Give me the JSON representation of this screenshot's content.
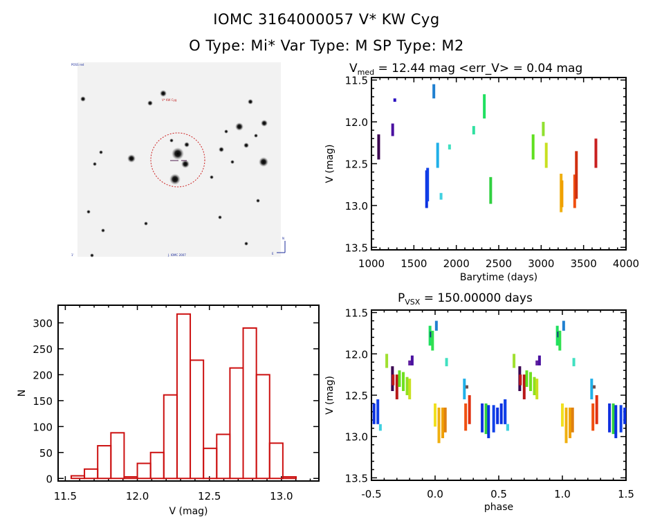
{
  "header": {
    "line1": "IOMC 3164000057    V* KW Cyg",
    "line2": "O Type: Mi*  Var Type: M  SP Type: M2"
  },
  "sky_image": {
    "survey_label": "POSS red",
    "target_label": "V* KW Cyg",
    "bottom_left_label": "1'",
    "bottom_center_label": "J. IOMC 2007",
    "compass_label": "N E",
    "circle_color": "#cc2020"
  },
  "chart_data": [
    {
      "type": "scatter",
      "name": "light_curve",
      "title_main": "V",
      "title_sub": "med",
      "title_rest": " = 12.44 mag <err_V> = 0.04 mag",
      "xlabel": "Barytime (days)",
      "ylabel": "V (mag)",
      "xlim": [
        1000,
        4000
      ],
      "ylim": [
        13.53,
        11.47
      ],
      "y_inverted": true,
      "xticks": [
        1000,
        1500,
        2000,
        2500,
        3000,
        3500,
        4000
      ],
      "yticks": [
        "11.5",
        "12.0",
        "12.5",
        "13.0",
        "13.5"
      ],
      "clusters": [
        {
          "t": 1085,
          "y": [
            12.15,
            12.45
          ],
          "color": "#3a0050"
        },
        {
          "t": 1250,
          "y": [
            12.02,
            12.17
          ],
          "color": "#4a10a0"
        },
        {
          "t": 1275,
          "y": [
            11.72,
            11.76
          ],
          "color": "#2a10c0"
        },
        {
          "t": 1650,
          "y": [
            12.58,
            13.03
          ],
          "color": "#0a30e0"
        },
        {
          "t": 1662,
          "y": [
            12.55,
            12.95
          ],
          "color": "#1040e8"
        },
        {
          "t": 1735,
          "y": [
            11.55,
            11.72
          ],
          "color": "#2080d0"
        },
        {
          "t": 1780,
          "y": [
            12.25,
            12.55
          ],
          "color": "#20b0e8"
        },
        {
          "t": 1820,
          "y": [
            12.85,
            12.93
          ],
          "color": "#40d0e0"
        },
        {
          "t": 1920,
          "y": [
            12.27,
            12.33
          ],
          "color": "#40e0c0"
        },
        {
          "t": 2205,
          "y": [
            12.05,
            12.15
          ],
          "color": "#30e0a0"
        },
        {
          "t": 2330,
          "y": [
            11.67,
            11.96
          ],
          "color": "#20e060"
        },
        {
          "t": 2405,
          "y": [
            12.66,
            12.98
          ],
          "color": "#30d040"
        },
        {
          "t": 2905,
          "y": [
            12.15,
            12.45
          ],
          "color": "#60e020"
        },
        {
          "t": 3025,
          "y": [
            12.0,
            12.17
          ],
          "color": "#90e030"
        },
        {
          "t": 3060,
          "y": [
            12.25,
            12.55
          ],
          "color": "#c8e020"
        },
        {
          "t": 3235,
          "y": [
            12.62,
            13.08
          ],
          "color": "#f0b010"
        },
        {
          "t": 3245,
          "y": [
            12.7,
            13.02
          ],
          "color": "#f0a000"
        },
        {
          "t": 3395,
          "y": [
            12.63,
            13.03
          ],
          "color": "#f05010"
        },
        {
          "t": 3415,
          "y": [
            12.35,
            12.92
          ],
          "color": "#d03010"
        },
        {
          "t": 3645,
          "y": [
            12.2,
            12.55
          ],
          "color": "#c82020"
        }
      ]
    },
    {
      "type": "bar",
      "name": "histogram",
      "xlabel": "V (mag)",
      "ylabel": "N",
      "xlim": [
        11.45,
        13.26
      ],
      "ylim": [
        -5,
        334
      ],
      "xticks": [
        "11.5",
        "12.0",
        "12.5",
        "13.0"
      ],
      "yticks": [
        0,
        50,
        100,
        150,
        200,
        250,
        300
      ],
      "bin_start": 11.541,
      "bin_width": 0.0918,
      "values": [
        5,
        18,
        63,
        88,
        3,
        29,
        50,
        161,
        317,
        228,
        58,
        85,
        213,
        290,
        200,
        68,
        3
      ],
      "bar_color": "#cc1010"
    },
    {
      "type": "scatter",
      "name": "phased_light_curve",
      "title_main": "P",
      "title_sub": "VSX",
      "title_rest": " = 150.00000 days",
      "xlabel": "phase",
      "ylabel": "V (mag)",
      "xlim": [
        -0.5,
        1.5
      ],
      "ylim": [
        13.53,
        11.47
      ],
      "y_inverted": true,
      "xticks": [
        "-0.5",
        "0.0",
        "0.5",
        "1.0",
        "1.5"
      ],
      "yticks": [
        "11.5",
        "12.0",
        "12.5",
        "13.0",
        "13.5"
      ],
      "period_days": 150.0,
      "clusters": [
        {
          "phase": -0.38,
          "y": [
            12.0,
            12.17
          ],
          "color": "#a0e030"
        },
        {
          "phase": -0.335,
          "y": [
            12.15,
            12.45
          ],
          "color": "#3a0050"
        },
        {
          "phase": -0.33,
          "y": [
            12.25,
            12.38
          ],
          "color": "#c01818"
        },
        {
          "phase": -0.3,
          "y": [
            12.25,
            12.55
          ],
          "color": "#b81818"
        },
        {
          "phase": -0.28,
          "y": [
            12.2,
            12.4
          ],
          "color": "#60e020"
        },
        {
          "phase": -0.25,
          "y": [
            12.22,
            12.45
          ],
          "color": "#70e020"
        },
        {
          "phase": -0.22,
          "y": [
            12.28,
            12.5
          ],
          "color": "#90e020"
        },
        {
          "phase": -0.2,
          "y": [
            12.3,
            12.55
          ],
          "color": "#c8e020"
        },
        {
          "phase": -0.2,
          "y": [
            12.08,
            12.14
          ],
          "color": "#6020a0"
        },
        {
          "phase": -0.18,
          "y": [
            12.02,
            12.14
          ],
          "color": "#4a10a0"
        },
        {
          "phase": -0.04,
          "y": [
            11.66,
            11.9
          ],
          "color": "#20e060"
        },
        {
          "phase": -0.03,
          "y": [
            11.73,
            11.8
          ],
          "color": "#103080"
        },
        {
          "phase": -0.02,
          "y": [
            11.72,
            11.96
          ],
          "color": "#30e050"
        },
        {
          "phase": 0.01,
          "y": [
            11.6,
            11.72
          ],
          "color": "#2080d0"
        },
        {
          "phase": 0.09,
          "y": [
            12.05,
            12.15
          ],
          "color": "#40e0c0"
        },
        {
          "phase": -0.48,
          "y": [
            12.6,
            12.85
          ],
          "color": "#0a30e0"
        },
        {
          "phase": -0.45,
          "y": [
            12.55,
            12.85
          ],
          "color": "#1040e8"
        },
        {
          "phase": -0.43,
          "y": [
            12.85,
            12.93
          ],
          "color": "#40d0e0"
        },
        {
          "phase": 0.0,
          "y": [
            12.6,
            12.88
          ],
          "color": "#f0e020"
        },
        {
          "phase": 0.03,
          "y": [
            12.65,
            13.08
          ],
          "color": "#f0b010"
        },
        {
          "phase": 0.06,
          "y": [
            12.65,
            13.02
          ],
          "color": "#f0a000"
        },
        {
          "phase": 0.08,
          "y": [
            12.65,
            12.95
          ],
          "color": "#e08010"
        },
        {
          "phase": 0.23,
          "y": [
            12.3,
            12.55
          ],
          "color": "#20b0e8"
        },
        {
          "phase": 0.25,
          "y": [
            12.38,
            12.42
          ],
          "color": "#705050"
        },
        {
          "phase": 0.24,
          "y": [
            12.6,
            12.93
          ],
          "color": "#f05010"
        },
        {
          "phase": 0.27,
          "y": [
            12.5,
            12.85
          ],
          "color": "#e03010"
        },
        {
          "phase": 0.37,
          "y": [
            12.6,
            12.95
          ],
          "color": "#1030e0"
        },
        {
          "phase": 0.4,
          "y": [
            12.6,
            12.97
          ],
          "color": "#30d040"
        },
        {
          "phase": 0.42,
          "y": [
            12.62,
            13.02
          ],
          "color": "#0a30e0"
        },
        {
          "phase": 0.46,
          "y": [
            12.62,
            12.95
          ],
          "color": "#1040e8"
        },
        {
          "phase": 0.49,
          "y": [
            12.65,
            12.85
          ],
          "color": "#0a30e0"
        },
        {
          "phase": 0.55,
          "y": [
            12.55,
            12.85
          ],
          "color": "#1040e8"
        },
        {
          "phase": 0.57,
          "y": [
            12.85,
            12.93
          ],
          "color": "#40d0e0"
        }
      ]
    }
  ]
}
